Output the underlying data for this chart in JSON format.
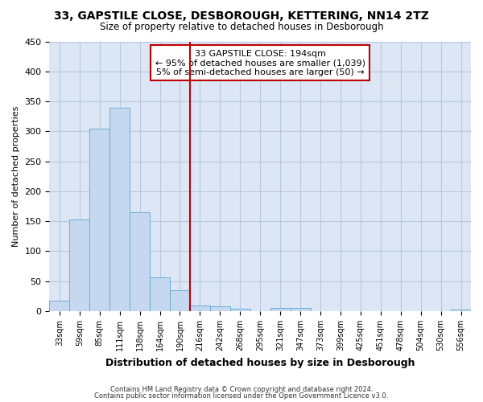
{
  "title1": "33, GAPSTILE CLOSE, DESBOROUGH, KETTERING, NN14 2TZ",
  "title2": "Size of property relative to detached houses in Desborough",
  "xlabel": "Distribution of detached houses by size in Desborough",
  "ylabel": "Number of detached properties",
  "footer1": "Contains HM Land Registry data © Crown copyright and database right 2024.",
  "footer2": "Contains public sector information licensed under the Open Government Licence v3.0.",
  "annotation_line1": "33 GAPSTILE CLOSE: 194sqm",
  "annotation_line2": "← 95% of detached houses are smaller (1,039)",
  "annotation_line3": "5% of semi-detached houses are larger (50) →",
  "bar_color": "#c5d8f0",
  "bar_edge_color": "#6aaed6",
  "vline_color": "#c00000",
  "vline_x": 6.5,
  "xlim": [
    -0.5,
    20.5
  ],
  "ylim": [
    0,
    450
  ],
  "yticks": [
    0,
    50,
    100,
    150,
    200,
    250,
    300,
    350,
    400,
    450
  ],
  "categories": [
    "33sqm",
    "59sqm",
    "85sqm",
    "111sqm",
    "138sqm",
    "164sqm",
    "190sqm",
    "216sqm",
    "242sqm",
    "268sqm",
    "295sqm",
    "321sqm",
    "347sqm",
    "373sqm",
    "399sqm",
    "425sqm",
    "451sqm",
    "478sqm",
    "504sqm",
    "530sqm",
    "556sqm"
  ],
  "values": [
    18,
    153,
    305,
    340,
    165,
    57,
    35,
    10,
    8,
    4,
    0,
    5,
    5,
    0,
    0,
    0,
    0,
    0,
    0,
    0,
    3
  ],
  "background_color": "#ffffff",
  "plot_bg_color": "#dce6f5",
  "grid_color": "#b8c8e0"
}
